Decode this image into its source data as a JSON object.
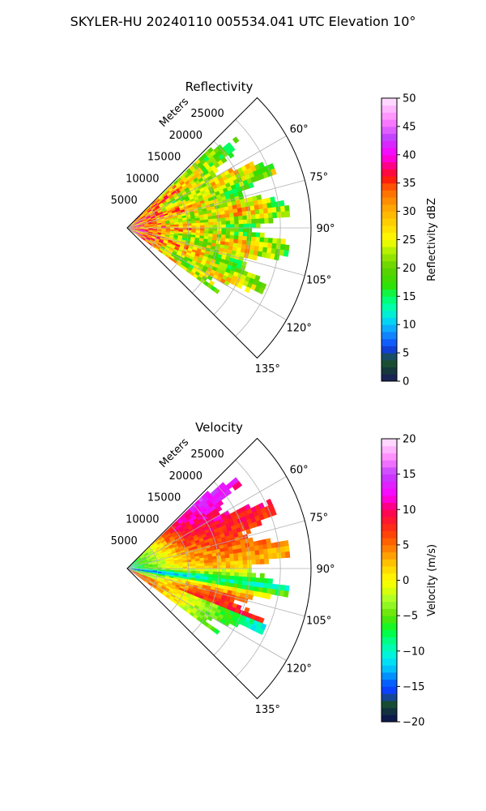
{
  "figure": {
    "suptitle": "SKYLER-HU  20240110  005534.041 UTC Elevation 10°"
  },
  "chart_data": [
    {
      "type": "heatmap",
      "projection": "polar-sector",
      "title": "Reflectivity",
      "range_axis_label": "Meters",
      "range_tick_labels": [
        "5000",
        "10000",
        "15000",
        "20000",
        "25000"
      ],
      "range_ticks": [
        5000,
        10000,
        15000,
        20000,
        25000
      ],
      "range_limit": [
        0,
        30000
      ],
      "azimuth_limit_deg": [
        45,
        135
      ],
      "azimuth_tick_labels": [
        "60°",
        "75°",
        "90°",
        "105°",
        "120°",
        "135°"
      ],
      "azimuth_ticks_deg": [
        60,
        75,
        90,
        105,
        120,
        135
      ],
      "data_azimuth_deg": [
        46,
        126
      ],
      "data_max_range_m": 26000,
      "grid": true,
      "colorbar": {
        "label": "Reflectivity dBZ",
        "range": [
          0,
          50
        ],
        "tick_labels": [
          "0",
          "5",
          "10",
          "15",
          "20",
          "25",
          "30",
          "35",
          "40",
          "45",
          "50"
        ],
        "ticks": [
          0,
          5,
          10,
          15,
          20,
          25,
          30,
          35,
          40,
          45,
          50
        ],
        "colors": [
          [
            0,
            "#1a1a5e"
          ],
          [
            2,
            "#153a3a"
          ],
          [
            4,
            "#1f5c2e"
          ],
          [
            5,
            "#1030c0"
          ],
          [
            7,
            "#1060ff"
          ],
          [
            9,
            "#10a0ff"
          ],
          [
            11,
            "#00e0f0"
          ],
          [
            13,
            "#00ffb0"
          ],
          [
            15,
            "#00ff60"
          ],
          [
            17,
            "#30e000"
          ],
          [
            20,
            "#60d000"
          ],
          [
            23,
            "#b0f000"
          ],
          [
            25,
            "#ffff00"
          ],
          [
            28,
            "#ffd000"
          ],
          [
            31,
            "#ffa000"
          ],
          [
            34,
            "#ff6000"
          ],
          [
            36,
            "#ff1010"
          ],
          [
            38,
            "#ff0080"
          ],
          [
            40,
            "#ff00ff"
          ],
          [
            43,
            "#c040ff"
          ],
          [
            46,
            "#ff80ff"
          ],
          [
            50,
            "#ffe8ff"
          ]
        ]
      }
    },
    {
      "type": "heatmap",
      "projection": "polar-sector",
      "title": "Velocity",
      "range_axis_label": "Meters",
      "range_tick_labels": [
        "5000",
        "10000",
        "15000",
        "20000",
        "25000"
      ],
      "range_ticks": [
        5000,
        10000,
        15000,
        20000,
        25000
      ],
      "range_limit": [
        0,
        30000
      ],
      "azimuth_limit_deg": [
        45,
        135
      ],
      "azimuth_tick_labels": [
        "60°",
        "75°",
        "90°",
        "105°",
        "120°",
        "135°"
      ],
      "azimuth_ticks_deg": [
        60,
        75,
        90,
        105,
        120,
        135
      ],
      "data_azimuth_deg": [
        46,
        126
      ],
      "data_max_range_m": 26000,
      "grid": true,
      "colorbar": {
        "label": "Velocity (m/s)",
        "range": [
          -20,
          20
        ],
        "tick_labels": [
          "−20",
          "−15",
          "−10",
          "−5",
          "0",
          "5",
          "10",
          "15",
          "20"
        ],
        "ticks": [
          -20,
          -15,
          -10,
          -5,
          0,
          5,
          10,
          15,
          20
        ],
        "colors": [
          [
            -20,
            "#0a1050"
          ],
          [
            -18,
            "#143c3c"
          ],
          [
            -17,
            "#1a5a2a"
          ],
          [
            -16,
            "#1030ff"
          ],
          [
            -14,
            "#0070ff"
          ],
          [
            -13,
            "#00b0ff"
          ],
          [
            -11,
            "#00f0f0"
          ],
          [
            -9,
            "#00ffa0"
          ],
          [
            -7,
            "#00ff30"
          ],
          [
            -5,
            "#60e000"
          ],
          [
            -3,
            "#a0ff30"
          ],
          [
            -1,
            "#e8ff00"
          ],
          [
            0,
            "#ffff00"
          ],
          [
            2,
            "#ffd000"
          ],
          [
            4,
            "#ff9000"
          ],
          [
            6,
            "#ff5000"
          ],
          [
            8,
            "#ff2020"
          ],
          [
            10,
            "#ff0060"
          ],
          [
            12,
            "#ff00ff"
          ],
          [
            15,
            "#c040ff"
          ],
          [
            17,
            "#ff80ff"
          ],
          [
            20,
            "#ffe8ff"
          ]
        ]
      }
    }
  ]
}
